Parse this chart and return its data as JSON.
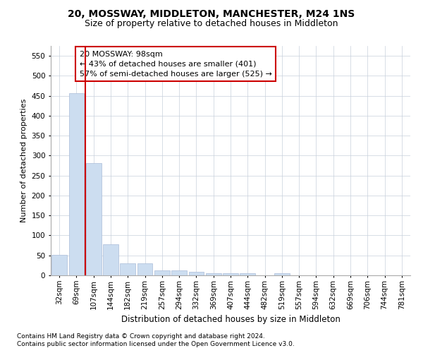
{
  "title": "20, MOSSWAY, MIDDLETON, MANCHESTER, M24 1NS",
  "subtitle": "Size of property relative to detached houses in Middleton",
  "xlabel": "Distribution of detached houses by size in Middleton",
  "ylabel": "Number of detached properties",
  "footnote1": "Contains HM Land Registry data © Crown copyright and database right 2024.",
  "footnote2": "Contains public sector information licensed under the Open Government Licence v3.0.",
  "annotation_line1": "20 MOSSWAY: 98sqm",
  "annotation_line2": "← 43% of detached houses are smaller (401)",
  "annotation_line3": "57% of semi-detached houses are larger (525) →",
  "bar_color": "#ccddf0",
  "bar_edge_color": "#aabbd8",
  "redline_color": "#cc0000",
  "categories": [
    "32sqm",
    "69sqm",
    "107sqm",
    "144sqm",
    "182sqm",
    "219sqm",
    "257sqm",
    "294sqm",
    "332sqm",
    "369sqm",
    "407sqm",
    "444sqm",
    "482sqm",
    "519sqm",
    "557sqm",
    "594sqm",
    "632sqm",
    "669sqm",
    "706sqm",
    "744sqm",
    "781sqm"
  ],
  "values": [
    52,
    456,
    282,
    77,
    30,
    30,
    12,
    12,
    9,
    5,
    5,
    6,
    0,
    5,
    0,
    0,
    0,
    0,
    0,
    0,
    0
  ],
  "ylim": [
    0,
    575
  ],
  "yticks": [
    0,
    50,
    100,
    150,
    200,
    250,
    300,
    350,
    400,
    450,
    500,
    550
  ],
  "title_fontsize": 10,
  "subtitle_fontsize": 9,
  "ylabel_fontsize": 8,
  "xlabel_fontsize": 8.5,
  "tick_fontsize": 7.5,
  "annotation_fontsize": 8,
  "footnote_fontsize": 6.5
}
